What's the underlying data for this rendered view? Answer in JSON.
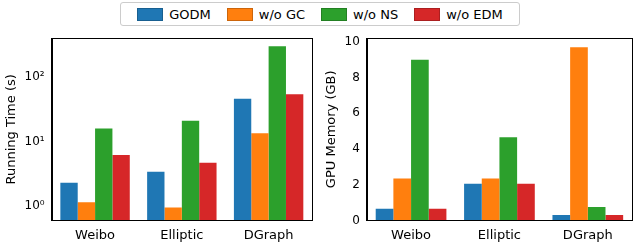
{
  "chart_data": [
    {
      "type": "bar",
      "log": "y",
      "grid": false,
      "legend": "top",
      "y_label": "Running Time (s)",
      "categories": [
        "Weibo",
        "Elliptic",
        "DGraph"
      ],
      "ylim": [
        0.6,
        400
      ],
      "yticks": [
        {
          "value": 1,
          "label": "10⁰"
        },
        {
          "value": 10,
          "label": "10¹"
        },
        {
          "value": 100,
          "label": "10²"
        }
      ],
      "series": [
        {
          "name": "GODM",
          "color": "#1f77b4",
          "values": [
            2.3,
            3.4,
            46
          ]
        },
        {
          "name": "w/o GC",
          "color": "#ff7f0e",
          "values": [
            1.15,
            0.95,
            13.5
          ]
        },
        {
          "name": "w/o NS",
          "color": "#2ca02c",
          "values": [
            16,
            21,
            300
          ]
        },
        {
          "name": "w/o EDM",
          "color": "#d62728",
          "values": [
            6.2,
            4.7,
            54
          ]
        }
      ]
    },
    {
      "type": "bar",
      "grid": false,
      "y_label": "GPU Memory (GB)",
      "categories": [
        "Weibo",
        "Elliptic",
        "DGraph"
      ],
      "ylim": [
        0,
        10.2
      ],
      "yticks": [
        0,
        2,
        4,
        6,
        8,
        10
      ],
      "series": [
        {
          "name": "GODM",
          "color": "#1f77b4",
          "values": [
            0.65,
            2.05,
            0.3
          ]
        },
        {
          "name": "w/o GC",
          "color": "#ff7f0e",
          "values": [
            2.35,
            2.35,
            9.7
          ]
        },
        {
          "name": "w/o NS",
          "color": "#2ca02c",
          "values": [
            9.0,
            4.65,
            0.75
          ]
        },
        {
          "name": "w/o EDM",
          "color": "#d62728",
          "values": [
            0.65,
            2.05,
            0.3
          ]
        }
      ]
    }
  ]
}
